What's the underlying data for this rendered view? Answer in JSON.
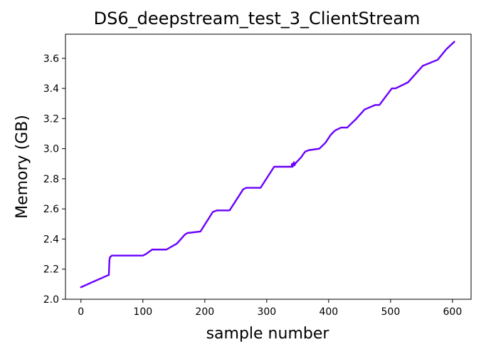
{
  "chart_data": {
    "type": "line",
    "title": "DS6_deepstream_test_3_ClientStream",
    "xlabel": "sample number",
    "ylabel": "Memory (GB)",
    "xlim": [
      -25,
      630
    ],
    "ylim": [
      2.0,
      3.76
    ],
    "x_ticks": [
      0,
      100,
      200,
      300,
      400,
      500,
      600
    ],
    "x_tick_labels": [
      "0",
      "100",
      "200",
      "300",
      "400",
      "500",
      "600"
    ],
    "y_ticks": [
      2.0,
      2.2,
      2.4,
      2.6,
      2.8,
      3.0,
      3.2,
      3.4,
      3.6
    ],
    "y_tick_labels": [
      "2.0",
      "2.2",
      "2.4",
      "2.6",
      "2.8",
      "3.0",
      "3.2",
      "3.4",
      "3.6"
    ],
    "grid": false,
    "series": [
      {
        "color": "#6a00ff",
        "x": [
          0,
          44,
          45,
          46,
          47,
          50,
          55,
          100,
          105,
          115,
          138,
          155,
          168,
          172,
          193,
          213,
          220,
          240,
          262,
          267,
          290,
          312,
          318,
          340,
          341,
          342,
          343,
          344,
          345,
          346,
          348,
          355,
          362,
          368,
          385,
          395,
          403,
          410,
          420,
          430,
          445,
          458,
          475,
          482,
          502,
          508,
          528,
          552,
          576,
          590,
          603
        ],
        "y": [
          2.08,
          2.16,
          2.16,
          2.26,
          2.28,
          2.29,
          2.29,
          2.29,
          2.3,
          2.33,
          2.33,
          2.37,
          2.43,
          2.44,
          2.45,
          2.58,
          2.59,
          2.59,
          2.73,
          2.74,
          2.74,
          2.88,
          2.88,
          2.88,
          2.9,
          2.88,
          2.9,
          2.91,
          2.89,
          2.9,
          2.91,
          2.94,
          2.98,
          2.99,
          3.0,
          3.04,
          3.09,
          3.12,
          3.14,
          3.14,
          3.2,
          3.26,
          3.29,
          3.29,
          3.4,
          3.4,
          3.44,
          3.55,
          3.59,
          3.66,
          3.71
        ]
      }
    ]
  }
}
